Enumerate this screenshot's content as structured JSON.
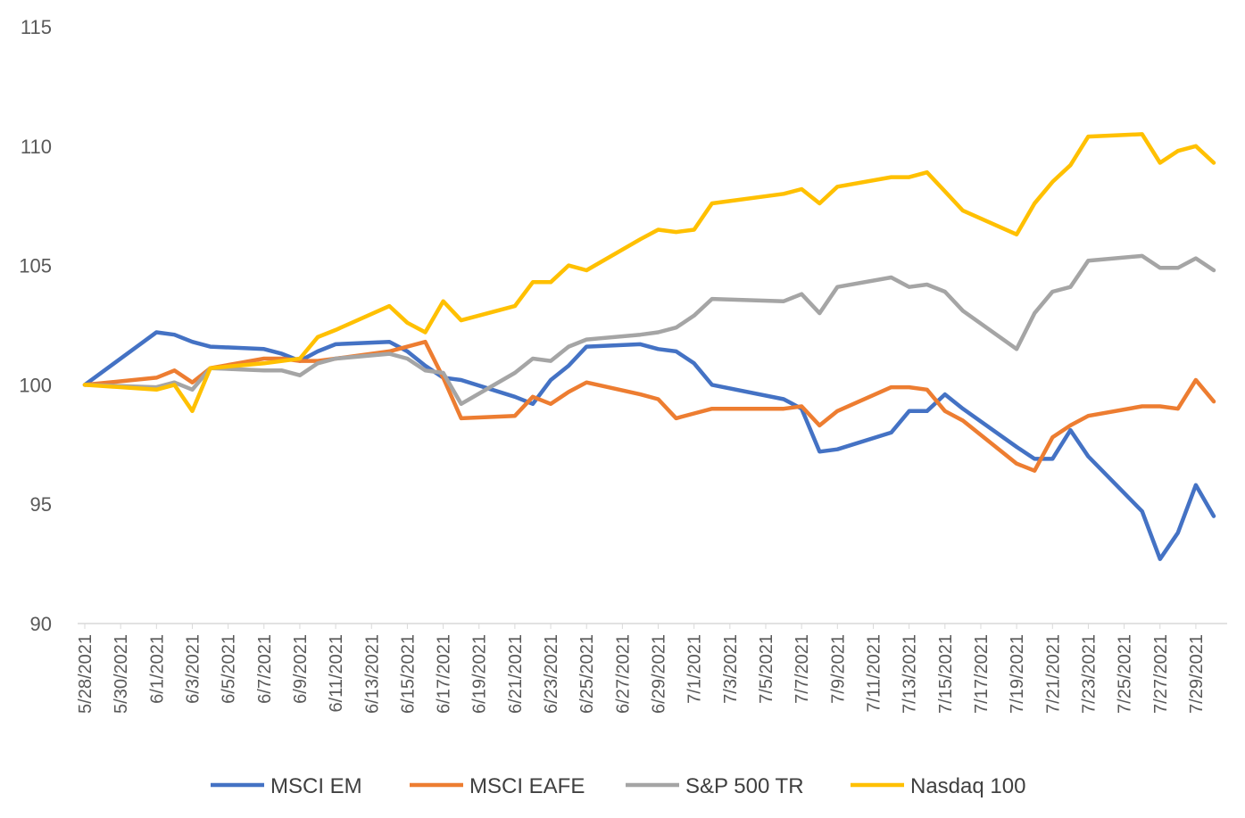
{
  "chart_data": {
    "type": "line",
    "title": "",
    "xlabel": "",
    "ylabel": "",
    "ylim": [
      90,
      115
    ],
    "yticks": [
      "90",
      "95",
      "100",
      "105",
      "110",
      "115"
    ],
    "xlim": [
      "5/28/2021",
      "7/30/2021"
    ],
    "xticks": [
      "5/28/2021",
      "5/30/2021",
      "6/1/2021",
      "6/3/2021",
      "6/5/2021",
      "6/7/2021",
      "6/9/2021",
      "6/11/2021",
      "6/13/2021",
      "6/15/2021",
      "6/17/2021",
      "6/19/2021",
      "6/21/2021",
      "6/23/2021",
      "6/25/2021",
      "6/27/2021",
      "6/29/2021",
      "7/1/2021",
      "7/3/2021",
      "7/5/2021",
      "7/7/2021",
      "7/9/2021",
      "7/11/2021",
      "7/13/2021",
      "7/15/2021",
      "7/17/2021",
      "7/19/2021",
      "7/21/2021",
      "7/23/2021",
      "7/25/2021",
      "7/27/2021",
      "7/29/2021"
    ],
    "grid": false,
    "legend_position": "bottom",
    "series": [
      {
        "name": "MSCI EM",
        "color": "#4472C4",
        "points": [
          [
            "5/28/2021",
            100.0
          ],
          [
            "6/1/2021",
            102.2
          ],
          [
            "6/2/2021",
            102.1
          ],
          [
            "6/3/2021",
            101.8
          ],
          [
            "6/4/2021",
            101.6
          ],
          [
            "6/7/2021",
            101.5
          ],
          [
            "6/8/2021",
            101.3
          ],
          [
            "6/9/2021",
            101.0
          ],
          [
            "6/10/2021",
            101.4
          ],
          [
            "6/11/2021",
            101.7
          ],
          [
            "6/14/2021",
            101.8
          ],
          [
            "6/15/2021",
            101.4
          ],
          [
            "6/16/2021",
            100.8
          ],
          [
            "6/17/2021",
            100.3
          ],
          [
            "6/18/2021",
            100.2
          ],
          [
            "6/21/2021",
            99.5
          ],
          [
            "6/22/2021",
            99.2
          ],
          [
            "6/23/2021",
            100.2
          ],
          [
            "6/24/2021",
            100.8
          ],
          [
            "6/25/2021",
            101.6
          ],
          [
            "6/28/2021",
            101.7
          ],
          [
            "6/29/2021",
            101.5
          ],
          [
            "6/30/2021",
            101.4
          ],
          [
            "7/1/2021",
            100.9
          ],
          [
            "7/2/2021",
            100.0
          ],
          [
            "7/6/2021",
            99.4
          ],
          [
            "7/7/2021",
            99.0
          ],
          [
            "7/8/2021",
            97.2
          ],
          [
            "7/9/2021",
            97.3
          ],
          [
            "7/12/2021",
            98.0
          ],
          [
            "7/13/2021",
            98.9
          ],
          [
            "7/14/2021",
            98.9
          ],
          [
            "7/15/2021",
            99.6
          ],
          [
            "7/16/2021",
            99.0
          ],
          [
            "7/19/2021",
            97.4
          ],
          [
            "7/20/2021",
            96.9
          ],
          [
            "7/21/2021",
            96.9
          ],
          [
            "7/22/2021",
            98.1
          ],
          [
            "7/23/2021",
            97.0
          ],
          [
            "7/26/2021",
            94.7
          ],
          [
            "7/27/2021",
            92.7
          ],
          [
            "7/28/2021",
            93.8
          ],
          [
            "7/29/2021",
            95.8
          ],
          [
            "7/30/2021",
            94.5
          ]
        ]
      },
      {
        "name": "MSCI EAFE",
        "color": "#ED7D31",
        "points": [
          [
            "5/28/2021",
            100.0
          ],
          [
            "6/1/2021",
            100.3
          ],
          [
            "6/2/2021",
            100.6
          ],
          [
            "6/3/2021",
            100.1
          ],
          [
            "6/4/2021",
            100.7
          ],
          [
            "6/7/2021",
            101.1
          ],
          [
            "6/8/2021",
            101.1
          ],
          [
            "6/9/2021",
            101.0
          ],
          [
            "6/10/2021",
            101.0
          ],
          [
            "6/11/2021",
            101.1
          ],
          [
            "6/14/2021",
            101.4
          ],
          [
            "6/15/2021",
            101.6
          ],
          [
            "6/16/2021",
            101.8
          ],
          [
            "6/17/2021",
            100.3
          ],
          [
            "6/18/2021",
            98.6
          ],
          [
            "6/21/2021",
            98.7
          ],
          [
            "6/22/2021",
            99.5
          ],
          [
            "6/23/2021",
            99.2
          ],
          [
            "6/24/2021",
            99.7
          ],
          [
            "6/25/2021",
            100.1
          ],
          [
            "6/28/2021",
            99.6
          ],
          [
            "6/29/2021",
            99.4
          ],
          [
            "6/30/2021",
            98.6
          ],
          [
            "7/1/2021",
            98.8
          ],
          [
            "7/2/2021",
            99.0
          ],
          [
            "7/6/2021",
            99.0
          ],
          [
            "7/7/2021",
            99.1
          ],
          [
            "7/8/2021",
            98.3
          ],
          [
            "7/9/2021",
            98.9
          ],
          [
            "7/12/2021",
            99.9
          ],
          [
            "7/13/2021",
            99.9
          ],
          [
            "7/14/2021",
            99.8
          ],
          [
            "7/15/2021",
            98.9
          ],
          [
            "7/16/2021",
            98.5
          ],
          [
            "7/19/2021",
            96.7
          ],
          [
            "7/20/2021",
            96.4
          ],
          [
            "7/21/2021",
            97.8
          ],
          [
            "7/22/2021",
            98.3
          ],
          [
            "7/23/2021",
            98.7
          ],
          [
            "7/26/2021",
            99.1
          ],
          [
            "7/27/2021",
            99.1
          ],
          [
            "7/28/2021",
            99.0
          ],
          [
            "7/29/2021",
            100.2
          ],
          [
            "7/30/2021",
            99.3
          ]
        ]
      },
      {
        "name": "S&P 500 TR",
        "color": "#A5A5A5",
        "points": [
          [
            "5/28/2021",
            100.0
          ],
          [
            "6/1/2021",
            99.9
          ],
          [
            "6/2/2021",
            100.1
          ],
          [
            "6/3/2021",
            99.8
          ],
          [
            "6/4/2021",
            100.7
          ],
          [
            "6/7/2021",
            100.6
          ],
          [
            "6/8/2021",
            100.6
          ],
          [
            "6/9/2021",
            100.4
          ],
          [
            "6/10/2021",
            100.9
          ],
          [
            "6/11/2021",
            101.1
          ],
          [
            "6/14/2021",
            101.3
          ],
          [
            "6/15/2021",
            101.1
          ],
          [
            "6/16/2021",
            100.6
          ],
          [
            "6/17/2021",
            100.5
          ],
          [
            "6/18/2021",
            99.2
          ],
          [
            "6/21/2021",
            100.5
          ],
          [
            "6/22/2021",
            101.1
          ],
          [
            "6/23/2021",
            101.0
          ],
          [
            "6/24/2021",
            101.6
          ],
          [
            "6/25/2021",
            101.9
          ],
          [
            "6/28/2021",
            102.1
          ],
          [
            "6/29/2021",
            102.2
          ],
          [
            "6/30/2021",
            102.4
          ],
          [
            "7/1/2021",
            102.9
          ],
          [
            "7/2/2021",
            103.6
          ],
          [
            "7/6/2021",
            103.5
          ],
          [
            "7/7/2021",
            103.8
          ],
          [
            "7/8/2021",
            103.0
          ],
          [
            "7/9/2021",
            104.1
          ],
          [
            "7/12/2021",
            104.5
          ],
          [
            "7/13/2021",
            104.1
          ],
          [
            "7/14/2021",
            104.2
          ],
          [
            "7/15/2021",
            103.9
          ],
          [
            "7/16/2021",
            103.1
          ],
          [
            "7/19/2021",
            101.5
          ],
          [
            "7/20/2021",
            103.0
          ],
          [
            "7/21/2021",
            103.9
          ],
          [
            "7/22/2021",
            104.1
          ],
          [
            "7/23/2021",
            105.2
          ],
          [
            "7/26/2021",
            105.4
          ],
          [
            "7/27/2021",
            104.9
          ],
          [
            "7/28/2021",
            104.9
          ],
          [
            "7/29/2021",
            105.3
          ],
          [
            "7/30/2021",
            104.8
          ]
        ]
      },
      {
        "name": "Nasdaq 100",
        "color": "#FFC000",
        "points": [
          [
            "5/28/2021",
            100.0
          ],
          [
            "6/1/2021",
            99.8
          ],
          [
            "6/2/2021",
            100.0
          ],
          [
            "6/3/2021",
            98.9
          ],
          [
            "6/4/2021",
            100.7
          ],
          [
            "6/7/2021",
            100.9
          ],
          [
            "6/8/2021",
            101.0
          ],
          [
            "6/9/2021",
            101.1
          ],
          [
            "6/10/2021",
            102.0
          ],
          [
            "6/11/2021",
            102.3
          ],
          [
            "6/14/2021",
            103.3
          ],
          [
            "6/15/2021",
            102.6
          ],
          [
            "6/16/2021",
            102.2
          ],
          [
            "6/17/2021",
            103.5
          ],
          [
            "6/18/2021",
            102.7
          ],
          [
            "6/21/2021",
            103.3
          ],
          [
            "6/22/2021",
            104.3
          ],
          [
            "6/23/2021",
            104.3
          ],
          [
            "6/24/2021",
            105.0
          ],
          [
            "6/25/2021",
            104.8
          ],
          [
            "6/28/2021",
            106.1
          ],
          [
            "6/29/2021",
            106.5
          ],
          [
            "6/30/2021",
            106.4
          ],
          [
            "7/1/2021",
            106.5
          ],
          [
            "7/2/2021",
            107.6
          ],
          [
            "7/6/2021",
            108.0
          ],
          [
            "7/7/2021",
            108.2
          ],
          [
            "7/8/2021",
            107.6
          ],
          [
            "7/9/2021",
            108.3
          ],
          [
            "7/12/2021",
            108.7
          ],
          [
            "7/13/2021",
            108.7
          ],
          [
            "7/14/2021",
            108.9
          ],
          [
            "7/15/2021",
            108.1
          ],
          [
            "7/16/2021",
            107.3
          ],
          [
            "7/19/2021",
            106.3
          ],
          [
            "7/20/2021",
            107.6
          ],
          [
            "7/21/2021",
            108.5
          ],
          [
            "7/22/2021",
            109.2
          ],
          [
            "7/23/2021",
            110.4
          ],
          [
            "7/26/2021",
            110.5
          ],
          [
            "7/27/2021",
            109.3
          ],
          [
            "7/28/2021",
            109.8
          ],
          [
            "7/29/2021",
            110.0
          ],
          [
            "7/30/2021",
            109.3
          ]
        ]
      }
    ]
  }
}
